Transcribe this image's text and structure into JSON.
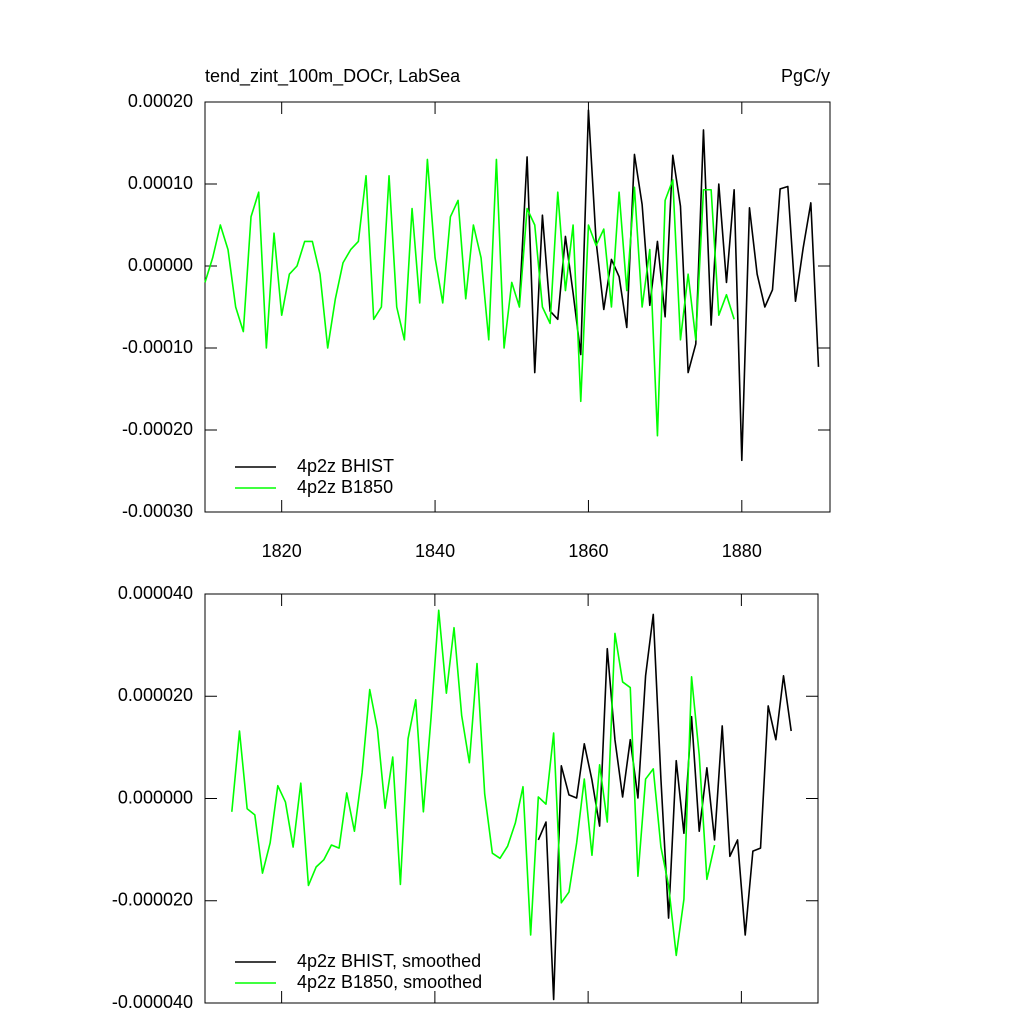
{
  "chart_data": [
    {
      "type": "line",
      "title": "tend_zint_100m_DOCr, LabSea",
      "units": "PgC/y",
      "xlim": [
        1810,
        1891.5
      ],
      "xticks": [
        1820,
        1840,
        1860,
        1880
      ],
      "ylim": [
        -0.0003,
        0.0002
      ],
      "yticks": [
        {
          "value": -0.0003,
          "label": "-0.00030"
        },
        {
          "value": -0.0002,
          "label": "-0.00020"
        },
        {
          "value": -0.0001,
          "label": "-0.00010"
        },
        {
          "value": 0,
          "label": "0.00000"
        },
        {
          "value": 0.0001,
          "label": "0.00010"
        },
        {
          "value": 0.0002,
          "label": "0.00020"
        }
      ],
      "legend": "lower left",
      "series": [
        {
          "name": "4p2z BHIST",
          "color": "#000000",
          "x": [
            1851,
            1852,
            1853,
            1854,
            1855,
            1856,
            1857,
            1858,
            1859,
            1860,
            1861,
            1862,
            1863,
            1864,
            1865,
            1866,
            1867,
            1868,
            1869,
            1870,
            1871,
            1872,
            1873,
            1874,
            1875,
            1876,
            1877,
            1878,
            1879,
            1880,
            1881,
            1882,
            1883,
            1884,
            1885,
            1886,
            1887,
            1888,
            1889,
            1890
          ],
          "values": [
            -4.5e-05,
            0.000133,
            -0.00013,
            6.2e-05,
            -5.5e-05,
            -6.5e-05,
            3.6e-05,
            -3.3e-05,
            -0.000108,
            0.00019,
            3e-05,
            -5.3e-05,
            8e-06,
            -1.3e-05,
            -7.5e-05,
            0.000136,
            7.5e-05,
            -4.8e-05,
            3e-05,
            -6.2e-05,
            0.000135,
            7.3e-05,
            -0.00013,
            -9.5e-05,
            0.000166,
            -7.2e-05,
            0.0001,
            -2e-05,
            9.3e-05,
            -0.000237,
            7.1e-05,
            -1e-05,
            -5e-05,
            -2.9e-05,
            9.4e-05,
            9.7e-05,
            -4.3e-05,
            2.2e-05,
            7.7e-05,
            -0.000123
          ]
        },
        {
          "name": "4p2z B1850",
          "color": "#00ff00",
          "x": [
            1810,
            1811,
            1812,
            1813,
            1814,
            1815,
            1816,
            1817,
            1818,
            1819,
            1820,
            1821,
            1822,
            1823,
            1824,
            1825,
            1826,
            1827,
            1828,
            1829,
            1830,
            1831,
            1832,
            1833,
            1834,
            1835,
            1836,
            1837,
            1838,
            1839,
            1840,
            1841,
            1842,
            1843,
            1844,
            1845,
            1846,
            1847,
            1848,
            1849,
            1850,
            1851,
            1852,
            1853,
            1854,
            1855,
            1856,
            1857,
            1858,
            1859,
            1860,
            1861,
            1862,
            1863,
            1864,
            1865,
            1866,
            1867,
            1868,
            1869,
            1870,
            1871,
            1872,
            1873,
            1874,
            1875,
            1876,
            1877,
            1878,
            1879
          ],
          "values": [
            -2e-05,
            1e-05,
            5e-05,
            2e-05,
            -5e-05,
            -8e-05,
            6e-05,
            9e-05,
            -0.0001,
            4e-05,
            -6e-05,
            -1e-05,
            0,
            3e-05,
            3e-05,
            -1e-05,
            -0.0001,
            -4e-05,
            4e-06,
            2e-05,
            3e-05,
            0.00011,
            -6.5e-05,
            -5e-05,
            0.00011,
            -5e-05,
            -9e-05,
            7e-05,
            -4.5e-05,
            0.00013,
            1e-05,
            -4.5e-05,
            6e-05,
            8e-05,
            -4e-05,
            5e-05,
            1e-05,
            -9e-05,
            0.00013,
            -0.0001,
            -2e-05,
            -5e-05,
            7e-05,
            5e-05,
            -5e-05,
            -7e-05,
            9e-05,
            -3e-05,
            5e-05,
            -0.000165,
            5e-05,
            2.5e-05,
            4.5e-05,
            -5e-05,
            9e-05,
            -3e-05,
            9.6e-05,
            -5e-05,
            2e-05,
            -0.000207,
            8e-05,
            0.000105,
            -9e-05,
            -1e-05,
            -9e-05,
            9.3e-05,
            9.3e-05,
            -6e-05,
            -3.5e-05,
            -6.5e-05
          ]
        }
      ]
    },
    {
      "type": "line",
      "xlim": [
        1810,
        1890
      ],
      "xticks": [
        1820,
        1840,
        1860,
        1880
      ],
      "ylim": [
        -4e-05,
        4e-05
      ],
      "yticks": [
        {
          "value": -4e-05,
          "label": "-0.000040"
        },
        {
          "value": -2e-05,
          "label": "-0.000020"
        },
        {
          "value": 0,
          "label": "0.000000"
        },
        {
          "value": 2e-05,
          "label": "0.000020"
        },
        {
          "value": 4e-05,
          "label": "0.000040"
        }
      ],
      "legend": "lower left",
      "series": [
        {
          "name": "4p2z BHIST, smoothed",
          "color": "#000000",
          "x": [
            1853.5,
            1854.5,
            1855.5,
            1856.5,
            1857.5,
            1858.5,
            1859.5,
            1860.5,
            1861.5,
            1862.5,
            1863.5,
            1864.5,
            1865.5,
            1866.5,
            1867.5,
            1868.5,
            1869.5,
            1870.5,
            1871.5,
            1872.5,
            1873.5,
            1874.5,
            1875.5,
            1876.5,
            1877.5,
            1878.5,
            1879.5,
            1880.5,
            1881.5,
            1882.5,
            1883.5,
            1884.5,
            1885.5,
            1886.5
          ],
          "values": [
            -8.1e-06,
            -4.6e-06,
            -3.93e-05,
            6.4e-06,
            7e-07,
            1e-07,
            1.07e-05,
            3.6e-06,
            -5.4e-06,
            2.93e-05,
            1.15e-05,
            3e-07,
            1.15e-05,
            1e-07,
            2.4e-05,
            3.6e-05,
            3.8e-06,
            -2.34e-05,
            7.4e-06,
            -6.8e-06,
            1.6e-05,
            -6.4e-06,
            6e-06,
            -8.1e-06,
            1.42e-05,
            -1.13e-05,
            -8.1e-06,
            -2.67e-05,
            -1.03e-05,
            -9.7e-06,
            1.81e-05,
            1.15e-05,
            2.4e-05,
            1.32e-05
          ]
        },
        {
          "name": "4p2z B1850, smoothed",
          "color": "#00ff00",
          "x": [
            1813.5,
            1814.5,
            1815.5,
            1816.5,
            1817.5,
            1818.5,
            1819.5,
            1820.5,
            1821.5,
            1822.5,
            1823.5,
            1824.5,
            1825.5,
            1826.5,
            1827.5,
            1828.5,
            1829.5,
            1830.5,
            1831.5,
            1832.5,
            1833.5,
            1834.5,
            1835.5,
            1836.5,
            1837.5,
            1838.5,
            1839.5,
            1840.5,
            1841.5,
            1842.5,
            1843.5,
            1844.5,
            1845.5,
            1846.5,
            1847.5,
            1848.5,
            1849.5,
            1850.5,
            1851.5,
            1852.5,
            1853.5,
            1854.5,
            1855.5,
            1856.5,
            1857.5,
            1858.5,
            1859.5,
            1860.5,
            1861.5,
            1862.5,
            1863.5,
            1864.5,
            1865.5,
            1866.5,
            1867.5,
            1868.5,
            1869.5,
            1870.5,
            1871.5,
            1872.5,
            1873.5,
            1874.5,
            1875.5,
            1876.5
          ],
          "values": [
            -2.6e-06,
            1.32e-05,
            -2e-06,
            -3.2e-06,
            -1.46e-05,
            -8.7e-06,
            2.5e-06,
            -7e-07,
            -9.5e-06,
            3e-06,
            -1.7e-05,
            -1.34e-05,
            -1.2e-05,
            -9.1e-06,
            -9.7e-06,
            1.1e-06,
            -6.4e-06,
            5e-06,
            2.13e-05,
            1.36e-05,
            -1.9e-06,
            8.1e-06,
            -1.68e-05,
            1.17e-05,
            1.93e-05,
            -2.6e-06,
            1.58e-05,
            3.68e-05,
            2.06e-05,
            3.34e-05,
            1.62e-05,
            7e-06,
            2.64e-05,
            9e-07,
            -1.07e-05,
            -1.17e-05,
            -9.3e-06,
            -4.8e-06,
            2.3e-06,
            -2.67e-05,
            3e-07,
            -1.1e-06,
            1.28e-05,
            -2.04e-05,
            -1.83e-05,
            -8.7e-06,
            3.8e-06,
            -1.11e-05,
            6.6e-06,
            -4.6e-06,
            3.23e-05,
            2.28e-05,
            2.17e-05,
            -1.52e-05,
            3.8e-06,
            5.8e-06,
            -9.5e-06,
            -1.7e-05,
            -3.07e-05,
            -1.97e-05,
            2.38e-05,
            8.5e-06,
            -1.58e-05,
            -9.1e-06
          ]
        }
      ]
    }
  ]
}
